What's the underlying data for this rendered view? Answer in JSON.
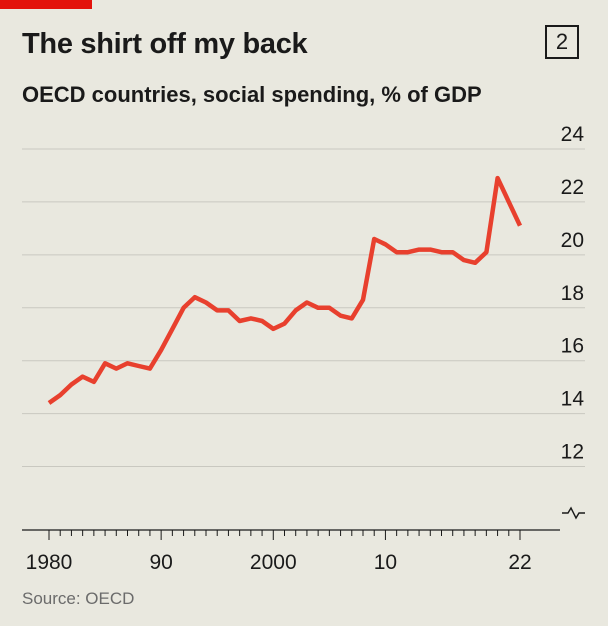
{
  "header": {
    "title": "The shirt off my back",
    "chart_number": "2",
    "subtitle": "OECD countries, social spending, % of GDP"
  },
  "source": "Source: OECD",
  "colors": {
    "line": "#e8402e",
    "accent": "#e3120b",
    "grid": "#c9c8c0",
    "background": "#e9e8df"
  },
  "chart_data": {
    "type": "line",
    "title": "The shirt off my back",
    "subtitle": "OECD countries, social spending, % of GDP",
    "ylim": [
      11,
      24
    ],
    "y_ticks": [
      12,
      14,
      16,
      18,
      20,
      22,
      24
    ],
    "x_ticks": [
      {
        "value": 1980,
        "label": "1980"
      },
      {
        "value": 1990,
        "label": "90"
      },
      {
        "value": 2000,
        "label": "2000"
      },
      {
        "value": 2010,
        "label": "10"
      },
      {
        "value": 2022,
        "label": "22"
      }
    ],
    "axis_break": true,
    "grid": true,
    "x": [
      1980,
      1981,
      1982,
      1983,
      1984,
      1985,
      1986,
      1987,
      1988,
      1989,
      1990,
      1991,
      1992,
      1993,
      1994,
      1995,
      1996,
      1997,
      1998,
      1999,
      2000,
      2001,
      2002,
      2003,
      2004,
      2005,
      2006,
      2007,
      2008,
      2009,
      2010,
      2011,
      2012,
      2013,
      2014,
      2015,
      2016,
      2017,
      2018,
      2019,
      2020,
      2021,
      2022
    ],
    "series": [
      {
        "values": [
          14.4,
          14.7,
          15.1,
          15.4,
          15.2,
          15.9,
          15.7,
          15.9,
          15.8,
          15.7,
          16.4,
          17.2,
          18.0,
          18.4,
          18.2,
          17.9,
          17.9,
          17.5,
          17.6,
          17.5,
          17.2,
          17.4,
          17.9,
          18.2,
          18.0,
          18.0,
          17.7,
          17.6,
          18.3,
          20.6,
          20.4,
          20.1,
          20.1,
          20.2,
          20.2,
          20.1,
          20.1,
          19.8,
          19.7,
          20.1,
          22.9,
          22.0,
          21.1
        ]
      }
    ]
  }
}
